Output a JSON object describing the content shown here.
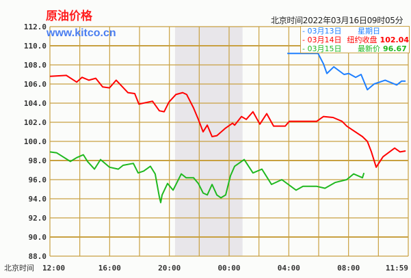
{
  "header": {
    "title": "原油价格",
    "site": "www.kitco.cn",
    "timestamp": "北京时间2022年03月16日09时05分"
  },
  "legend": [
    {
      "date": "- 03月13日",
      "label": "星期日",
      "value": "",
      "color": "#1e7fff"
    },
    {
      "date": "- 03月14日",
      "label": "纽约收盘",
      "value": "102.04",
      "color": "#ff0000"
    },
    {
      "date": "- 03月15日",
      "label": "最新价",
      "value": "96.67",
      "color": "#1fb81f"
    }
  ],
  "chart_data": {
    "type": "line",
    "title": "原油价格",
    "xlabel": "北京时间",
    "ylabel": "",
    "x_unit": "hours since 12:00",
    "xlim": [
      0,
      24
    ],
    "ylim": [
      88,
      112
    ],
    "yticks": [
      "112.0",
      "110.0",
      "108.0",
      "106.0",
      "104.0",
      "102.0",
      "100.0",
      "98.0",
      "96.0",
      "94.0",
      "92.0",
      "90.0",
      "88.0"
    ],
    "xticks": [
      {
        "x": 0,
        "label": "12:00"
      },
      {
        "x": 4,
        "label": "16:00"
      },
      {
        "x": 8,
        "label": "20:00"
      },
      {
        "x": 12,
        "label": "00:00"
      },
      {
        "x": 16,
        "label": "04:00"
      },
      {
        "x": 20,
        "label": "08:00"
      },
      {
        "x": 24,
        "label": "11:59"
      }
    ],
    "grid": true,
    "shaded_range": [
      8.38,
      12.9
    ],
    "series": [
      {
        "name": "03月13日",
        "color": "#1e7fff",
        "x": [
          15.9,
          17.96,
          18.32,
          18.55,
          19.01,
          19.7,
          20.02,
          20.48,
          20.84,
          21.26,
          21.71,
          22.45,
          23.23,
          23.55,
          23.82
        ],
        "y": [
          109.2,
          109.2,
          108.1,
          107.1,
          107.8,
          107.0,
          107.1,
          106.7,
          107.0,
          105.4,
          106.0,
          106.4,
          105.9,
          106.3,
          106.3
        ]
      },
      {
        "name": "03月14日",
        "color": "#ff0000",
        "x": [
          0,
          1.1,
          1.79,
          2.15,
          2.61,
          3.07,
          3.53,
          3.99,
          4.44,
          5.22,
          5.68,
          5.96,
          6.87,
          7.33,
          7.65,
          7.97,
          8.43,
          8.89,
          9.16,
          9.62,
          9.94,
          10.26,
          10.54,
          10.86,
          11.18,
          11.77,
          12.23,
          12.37,
          12.83,
          13.15,
          13.6,
          14.06,
          14.52,
          14.98,
          15.76,
          16.03,
          17.87,
          18.32,
          18.96,
          19.56,
          19.88,
          20.93,
          21.26,
          21.53,
          21.85,
          22.31,
          23.09,
          23.45,
          23.82
        ],
        "y": [
          106.8,
          106.9,
          106.2,
          106.7,
          106.4,
          106.6,
          105.7,
          105.6,
          106.4,
          105.1,
          105.0,
          103.9,
          104.2,
          103.2,
          103.1,
          104.1,
          104.9,
          105.1,
          104.9,
          103.5,
          102.3,
          101.0,
          101.7,
          100.5,
          100.6,
          101.4,
          101.9,
          101.7,
          102.6,
          102.3,
          103.1,
          101.8,
          102.9,
          101.6,
          101.6,
          102.1,
          102.1,
          102.6,
          102.5,
          102.1,
          101.6,
          100.5,
          100.0,
          98.9,
          97.3,
          98.4,
          99.3,
          98.9,
          99.0
        ]
      },
      {
        "name": "03月15日",
        "color": "#1fb81f",
        "x": [
          0,
          0.46,
          1.37,
          1.79,
          2.24,
          2.52,
          2.98,
          3.39,
          3.99,
          4.58,
          4.9,
          5.59,
          5.91,
          6.28,
          6.73,
          7.05,
          7.33,
          7.42,
          7.51,
          7.88,
          8.25,
          8.8,
          9.12,
          9.62,
          9.94,
          10.26,
          10.54,
          10.86,
          11.18,
          11.45,
          11.77,
          12.09,
          12.37,
          13.01,
          13.6,
          14.2,
          14.84,
          15.53,
          16.49,
          16.95,
          17.87,
          18.42,
          19.1,
          19.88,
          20.34,
          20.93,
          21.03
        ],
        "y": [
          98.9,
          98.8,
          97.9,
          98.3,
          98.6,
          97.9,
          97.1,
          98.1,
          97.3,
          97.1,
          97.5,
          97.7,
          96.7,
          96.9,
          97.4,
          96.6,
          94.2,
          93.6,
          94.4,
          95.6,
          94.9,
          96.6,
          96.2,
          96.2,
          95.6,
          94.6,
          94.4,
          95.5,
          94.4,
          94.1,
          94.4,
          96.4,
          97.4,
          98.1,
          96.7,
          97.1,
          95.5,
          96.0,
          94.9,
          95.3,
          95.3,
          95.1,
          95.7,
          96.0,
          96.6,
          96.2,
          96.7
        ]
      }
    ]
  }
}
